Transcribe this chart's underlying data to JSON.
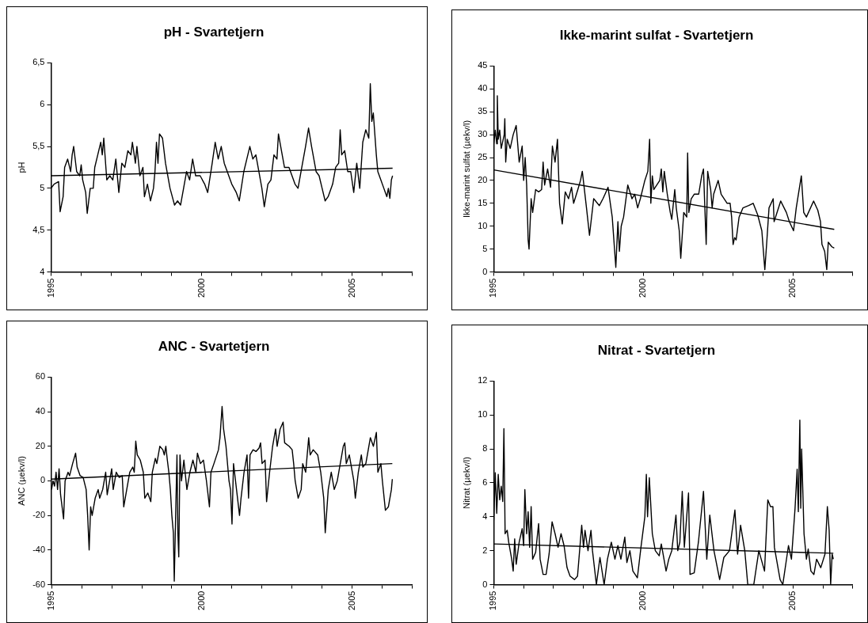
{
  "chart_data": [
    {
      "type": "line",
      "title": "pH - Svartetjern",
      "ylabel": "pH",
      "xlim": [
        1995,
        2007
      ],
      "xticks": [
        1995,
        {
          "value": 1996,
          "label": null
        },
        {
          "value": 1997,
          "label": null
        },
        {
          "value": 1998,
          "label": null
        },
        {
          "value": 1999,
          "label": null
        },
        2000,
        {
          "value": 2001,
          "label": null
        },
        {
          "value": 2002,
          "label": null
        },
        {
          "value": 2003,
          "label": null
        },
        {
          "value": 2004,
          "label": null
        },
        2005,
        {
          "value": 2006,
          "label": null
        },
        {
          "value": 2007,
          "label": null
        }
      ],
      "ylim": [
        4,
        6.5
      ],
      "yticks": [
        4,
        {
          "value": 4.5,
          "label": "4,5"
        },
        5,
        {
          "value": 5.5,
          "label": "5,5"
        },
        6,
        {
          "value": 6.5,
          "label": "6,5"
        }
      ],
      "grid": false,
      "legend": false,
      "marker": "none",
      "series": [
        {
          "color": "#000000",
          "x": [
            1995.0,
            1995.1,
            1995.25,
            1995.3,
            1995.4,
            1995.45,
            1995.55,
            1995.65,
            1995.7,
            1995.75,
            1995.85,
            1995.95,
            1996.0,
            1996.05,
            1996.15,
            1996.2,
            1996.3,
            1996.4,
            1996.45,
            1996.55,
            1996.65,
            1996.7,
            1996.75,
            1996.85,
            1996.95,
            1997.05,
            1997.15,
            1997.25,
            1997.35,
            1997.45,
            1997.55,
            1997.65,
            1997.7,
            1997.8,
            1997.85,
            1997.95,
            1998.05,
            1998.1,
            1998.2,
            1998.3,
            1998.4,
            1998.45,
            1998.5,
            1998.55,
            1998.6,
            1998.7,
            1998.8,
            1998.95,
            1999.1,
            1999.2,
            1999.3,
            1999.4,
            1999.5,
            1999.6,
            1999.7,
            1999.8,
            1999.95,
            2000.1,
            2000.2,
            2000.35,
            2000.45,
            2000.55,
            2000.65,
            2000.75,
            2000.85,
            2001.0,
            2001.15,
            2001.25,
            2001.4,
            2001.5,
            2001.6,
            2001.7,
            2001.8,
            2001.9,
            2002.0,
            2002.08,
            2002.2,
            2002.3,
            2002.4,
            2002.5,
            2002.55,
            2002.65,
            2002.75,
            2002.9,
            2003.0,
            2003.1,
            2003.2,
            2003.35,
            2003.45,
            2003.55,
            2003.65,
            2003.8,
            2003.9,
            2004.0,
            2004.1,
            2004.2,
            2004.35,
            2004.45,
            2004.55,
            2004.6,
            2004.65,
            2004.75,
            2004.85,
            2004.95,
            2005.05,
            2005.15,
            2005.25,
            2005.35,
            2005.45,
            2005.55,
            2005.6,
            2005.65,
            2005.7,
            2005.8,
            2005.85,
            2005.95,
            2006.05,
            2006.1,
            2006.15,
            2006.2,
            2006.25,
            2006.3,
            2006.34
          ],
          "values": [
            5.0,
            5.05,
            5.08,
            4.72,
            4.9,
            5.25,
            5.35,
            5.2,
            5.4,
            5.5,
            5.2,
            5.15,
            5.28,
            5.1,
            4.95,
            4.7,
            5.0,
            5.0,
            5.25,
            5.4,
            5.55,
            5.4,
            5.6,
            5.1,
            5.15,
            5.1,
            5.35,
            4.95,
            5.3,
            5.25,
            5.45,
            5.4,
            5.55,
            5.3,
            5.5,
            5.15,
            5.25,
            4.9,
            5.05,
            4.85,
            5.0,
            5.2,
            5.55,
            5.3,
            5.65,
            5.6,
            5.3,
            5.0,
            4.8,
            4.85,
            4.8,
            5.0,
            5.2,
            5.1,
            5.35,
            5.15,
            5.15,
            5.05,
            4.95,
            5.3,
            5.55,
            5.35,
            5.5,
            5.3,
            5.2,
            5.05,
            4.95,
            4.85,
            5.2,
            5.35,
            5.5,
            5.35,
            5.4,
            5.2,
            5.0,
            4.78,
            5.05,
            5.1,
            5.4,
            5.35,
            5.65,
            5.45,
            5.25,
            5.25,
            5.15,
            5.05,
            5.0,
            5.3,
            5.5,
            5.72,
            5.5,
            5.2,
            5.15,
            5.0,
            4.85,
            4.9,
            5.05,
            5.25,
            5.3,
            5.7,
            5.4,
            5.45,
            5.2,
            5.2,
            4.95,
            5.3,
            5.0,
            5.55,
            5.7,
            5.6,
            6.25,
            5.8,
            5.9,
            5.4,
            5.2,
            5.1,
            5.0,
            4.95,
            4.9,
            5.0,
            4.88,
            5.1,
            5.15
          ]
        },
        {
          "type": "line",
          "color": "#000000",
          "x": [
            1995,
            2006.34
          ],
          "values": [
            5.15,
            5.24
          ]
        }
      ]
    },
    {
      "type": "line",
      "title": "Ikke-marint sulfat - Svartetjern",
      "ylabel": "Ikke-marint sulfat (µekv/l)",
      "xlim": [
        1995,
        2007
      ],
      "xticks": [
        1995,
        {
          "value": 1996,
          "label": null
        },
        {
          "value": 1997,
          "label": null
        },
        {
          "value": 1998,
          "label": null
        },
        {
          "value": 1999,
          "label": null
        },
        2000,
        {
          "value": 2001,
          "label": null
        },
        {
          "value": 2002,
          "label": null
        },
        {
          "value": 2003,
          "label": null
        },
        {
          "value": 2004,
          "label": null
        },
        2005,
        {
          "value": 2006,
          "label": null
        },
        {
          "value": 2007,
          "label": null
        }
      ],
      "ylim": [
        0,
        45
      ],
      "yticks": [
        0,
        5,
        10,
        15,
        20,
        25,
        30,
        35,
        40,
        45
      ],
      "grid": false,
      "legend": false,
      "marker": "none",
      "series": [
        {
          "color": "#000000",
          "x": [
            1995.0,
            1995.05,
            1995.1,
            1995.12,
            1995.15,
            1995.2,
            1995.25,
            1995.35,
            1995.37,
            1995.4,
            1995.45,
            1995.55,
            1995.65,
            1995.75,
            1995.8,
            1995.85,
            1995.95,
            1996.0,
            1996.05,
            1996.1,
            1996.15,
            1996.18,
            1996.25,
            1996.3,
            1996.4,
            1996.5,
            1996.6,
            1996.65,
            1996.7,
            1996.8,
            1996.9,
            1996.96,
            1997.05,
            1997.13,
            1997.2,
            1997.29,
            1997.39,
            1997.5,
            1997.6,
            1997.67,
            1997.81,
            1997.9,
            1997.96,
            1998.1,
            1998.2,
            1998.34,
            1998.53,
            1998.65,
            1998.72,
            1998.82,
            1998.96,
            1999.08,
            1999.15,
            1999.2,
            1999.26,
            1999.34,
            1999.48,
            1999.62,
            1999.71,
            1999.81,
            1999.9,
            2000.05,
            2000.15,
            2000.21,
            2000.25,
            2000.3,
            2000.35,
            2000.45,
            2000.55,
            2000.6,
            2000.65,
            2000.7,
            2000.8,
            2000.9,
            2000.95,
            2001.05,
            2001.1,
            2001.2,
            2001.25,
            2001.35,
            2001.45,
            2001.48,
            2001.52,
            2001.6,
            2001.7,
            2001.85,
            2001.95,
            2002.01,
            2002.05,
            2002.1,
            2002.15,
            2002.25,
            2002.3,
            2002.35,
            2002.45,
            2002.5,
            2002.6,
            2002.7,
            2002.8,
            2002.9,
            2002.95,
            2003.0,
            2003.05,
            2003.1,
            2003.2,
            2003.33,
            2003.52,
            2003.67,
            2003.82,
            2003.96,
            2004.06,
            2004.13,
            2004.2,
            2004.34,
            2004.37,
            2004.59,
            2004.78,
            2004.88,
            2005.02,
            2005.11,
            2005.28,
            2005.36,
            2005.45,
            2005.69,
            2005.83,
            2005.92,
            2005.97,
            2006.06,
            2006.13,
            2006.18,
            2006.3,
            2006.38
          ],
          "values": [
            28,
            31,
            28,
            38.5,
            29,
            31,
            27,
            30,
            33.5,
            24,
            29,
            27,
            30,
            32,
            28,
            24,
            27.5,
            20,
            25,
            19,
            7,
            5,
            16,
            13,
            18,
            17.5,
            18,
            24,
            19,
            22.5,
            18.5,
            27.5,
            24,
            29,
            15,
            10.5,
            17.5,
            16,
            18.5,
            15,
            18,
            20,
            22,
            14,
            8,
            16,
            14.5,
            16,
            17,
            18.5,
            12,
            1,
            11,
            4.5,
            10,
            12,
            19,
            16,
            17,
            14,
            16,
            20,
            22,
            29,
            15,
            21,
            18,
            19,
            20,
            22.5,
            17.5,
            22,
            17,
            13,
            11.5,
            18,
            14,
            9,
            3,
            13,
            12,
            26,
            13,
            16,
            17,
            17,
            21,
            22.5,
            15,
            6,
            22,
            18,
            14,
            17,
            19,
            20,
            17,
            16,
            15,
            15,
            12,
            6,
            7.5,
            7,
            12,
            14,
            14.5,
            15,
            12.5,
            9,
            0.5,
            7,
            14,
            16,
            11,
            15.5,
            13,
            11,
            9,
            14,
            21,
            13,
            12,
            15.5,
            13.5,
            11,
            6,
            4.5,
            0.5,
            6.5,
            5.5,
            5.2
          ]
        },
        {
          "type": "line",
          "color": "#000000",
          "x": [
            1995,
            2006.38
          ],
          "values": [
            22.3,
            9.3
          ]
        }
      ]
    },
    {
      "type": "line",
      "title": "ANC - Svartetjern",
      "ylabel": "ANC (µekv/l)",
      "xlim": [
        1995,
        2007
      ],
      "xticks": [
        1995,
        {
          "value": 1996,
          "label": null
        },
        {
          "value": 1997,
          "label": null
        },
        {
          "value": 1998,
          "label": null
        },
        {
          "value": 1999,
          "label": null
        },
        2000,
        {
          "value": 2001,
          "label": null
        },
        {
          "value": 2002,
          "label": null
        },
        {
          "value": 2003,
          "label": null
        },
        {
          "value": 2004,
          "label": null
        },
        2005,
        {
          "value": 2006,
          "label": null
        },
        {
          "value": 2007,
          "label": null
        }
      ],
      "ylim": [
        -60,
        60
      ],
      "yticks": [
        -60,
        -40,
        -20,
        0,
        20,
        40,
        60
      ],
      "grid": false,
      "legend": false,
      "marker": "none",
      "series": [
        {
          "color": "#000000",
          "x": [
            1995.0,
            1995.05,
            1995.1,
            1995.15,
            1995.2,
            1995.25,
            1995.3,
            1995.4,
            1995.45,
            1995.55,
            1995.6,
            1995.7,
            1995.8,
            1995.85,
            1995.95,
            1996.05,
            1996.15,
            1996.2,
            1996.25,
            1996.3,
            1996.35,
            1996.45,
            1996.55,
            1996.6,
            1996.7,
            1996.8,
            1996.85,
            1996.95,
            1997.0,
            1997.05,
            1997.15,
            1997.25,
            1997.35,
            1997.4,
            1997.5,
            1997.6,
            1997.7,
            1997.75,
            1997.8,
            1997.85,
            1997.95,
            1998.05,
            1998.1,
            1998.2,
            1998.3,
            1998.35,
            1998.45,
            1998.5,
            1998.6,
            1998.7,
            1998.75,
            1998.8,
            1998.85,
            1998.9,
            1998.95,
            1999.0,
            1999.05,
            1999.08,
            1999.12,
            1999.17,
            1999.2,
            1999.23,
            1999.27,
            1999.32,
            1999.4,
            1999.5,
            1999.6,
            1999.7,
            1999.8,
            1999.85,
            1999.95,
            2000.05,
            2000.15,
            2000.25,
            2000.3,
            2000.4,
            2000.55,
            2000.6,
            2000.67,
            2000.72,
            2000.8,
            2000.9,
            2000.95,
            2001.0,
            2001.05,
            2001.15,
            2001.25,
            2001.3,
            2001.4,
            2001.5,
            2001.55,
            2001.6,
            2001.7,
            2001.8,
            2001.9,
            2001.95,
            2002.0,
            2002.1,
            2002.15,
            2002.25,
            2002.35,
            2002.45,
            2002.5,
            2002.6,
            2002.7,
            2002.75,
            2002.9,
            2003.0,
            2003.05,
            2003.1,
            2003.2,
            2003.3,
            2003.35,
            2003.45,
            2003.55,
            2003.6,
            2003.7,
            2003.85,
            2003.95,
            2004.05,
            2004.1,
            2004.2,
            2004.3,
            2004.4,
            2004.5,
            2004.6,
            2004.7,
            2004.75,
            2004.8,
            2004.9,
            2004.95,
            2005.05,
            2005.1,
            2005.2,
            2005.3,
            2005.35,
            2005.45,
            2005.55,
            2005.6,
            2005.7,
            2005.8,
            2005.85,
            2005.95,
            2006.0,
            2006.1,
            2006.2,
            2006.3,
            2006.33
          ],
          "values": [
            -5,
            0,
            -3,
            5,
            -5,
            7,
            -8,
            -22,
            0,
            5,
            3,
            10,
            16,
            8,
            3,
            2,
            -5,
            -20,
            -40,
            -15,
            -20,
            -10,
            -5,
            -10,
            -5,
            5,
            -8,
            2,
            7,
            -5,
            5,
            2,
            3,
            -15,
            -5,
            5,
            8,
            5,
            23,
            15,
            12,
            5,
            -10,
            -7,
            -12,
            5,
            13,
            10,
            20,
            18,
            15,
            20,
            12,
            5,
            -5,
            -20,
            -30,
            -58,
            -25,
            15,
            -30,
            -44,
            15,
            0,
            12,
            -5,
            5,
            12,
            5,
            16,
            10,
            12,
            0,
            -15,
            5,
            10,
            18,
            25,
            43,
            30,
            20,
            0,
            -5,
            -25,
            10,
            -5,
            -20,
            -10,
            5,
            15,
            -10,
            15,
            18,
            17,
            19,
            22,
            10,
            12,
            -12,
            5,
            20,
            30,
            20,
            30,
            34,
            22,
            20,
            18,
            10,
            0,
            -10,
            -5,
            10,
            5,
            25,
            15,
            18,
            15,
            5,
            -10,
            -30,
            -5,
            5,
            -5,
            0,
            10,
            20,
            22,
            10,
            15,
            10,
            0,
            -10,
            5,
            15,
            8,
            10,
            20,
            25,
            20,
            28,
            5,
            10,
            0,
            -17,
            -15,
            -5,
            1
          ]
        },
        {
          "type": "line",
          "color": "#000000",
          "x": [
            1995,
            2006.33
          ],
          "values": [
            1,
            10
          ]
        }
      ]
    },
    {
      "type": "line",
      "title": "Nitrat - Svartetjern",
      "ylabel": "Nitrat (µekv/l)",
      "xlim": [
        1995,
        2007
      ],
      "xticks": [
        1995,
        {
          "value": 1996,
          "label": null
        },
        {
          "value": 1997,
          "label": null
        },
        {
          "value": 1998,
          "label": null
        },
        {
          "value": 1999,
          "label": null
        },
        2000,
        {
          "value": 2001,
          "label": null
        },
        {
          "value": 2002,
          "label": null
        },
        {
          "value": 2003,
          "label": null
        },
        {
          "value": 2004,
          "label": null
        },
        2005,
        {
          "value": 2006,
          "label": null
        },
        {
          "value": 2007,
          "label": null
        }
      ],
      "ylim": [
        0,
        12
      ],
      "yticks": [
        0,
        2,
        4,
        6,
        8,
        10,
        12
      ],
      "grid": false,
      "legend": false,
      "marker": "none",
      "series": [
        {
          "color": "#000000",
          "x": [
            1995.0,
            1995.05,
            1995.1,
            1995.15,
            1995.2,
            1995.25,
            1995.3,
            1995.34,
            1995.38,
            1995.45,
            1995.5,
            1995.6,
            1995.65,
            1995.7,
            1995.75,
            1995.85,
            1995.95,
            1996.0,
            1996.04,
            1996.1,
            1996.15,
            1996.2,
            1996.25,
            1996.3,
            1996.4,
            1996.5,
            1996.55,
            1996.65,
            1996.75,
            1996.85,
            1996.95,
            1997.05,
            1997.15,
            1997.25,
            1997.35,
            1997.45,
            1997.55,
            1997.7,
            1997.8,
            1997.94,
            1998.0,
            1998.05,
            1998.15,
            1998.25,
            1998.3,
            1998.43,
            1998.55,
            1998.69,
            1998.8,
            1998.93,
            1999.05,
            1999.15,
            1999.25,
            1999.38,
            1999.45,
            1999.55,
            1999.65,
            1999.8,
            1999.92,
            2000.05,
            2000.1,
            2000.14,
            2000.2,
            2000.3,
            2000.4,
            2000.53,
            2000.6,
            2000.76,
            2000.85,
            2000.95,
            2001.09,
            2001.15,
            2001.22,
            2001.3,
            2001.37,
            2001.51,
            2001.56,
            2001.7,
            2001.84,
            2002.01,
            2002.12,
            2002.22,
            2002.36,
            2002.55,
            2002.69,
            2002.88,
            2003.06,
            2003.15,
            2003.25,
            2003.39,
            2003.49,
            2003.69,
            2003.86,
            2004.05,
            2004.16,
            2004.25,
            2004.33,
            2004.38,
            2004.57,
            2004.66,
            2004.85,
            2004.95,
            2005.07,
            2005.14,
            2005.18,
            2005.23,
            2005.26,
            2005.29,
            2005.37,
            2005.45,
            2005.51,
            2005.6,
            2005.7,
            2005.79,
            2005.93,
            2006.07,
            2006.15,
            2006.21,
            2006.26,
            2006.31,
            2006.35
          ],
          "values": [
            3.8,
            6.6,
            4.2,
            6.5,
            5,
            5.8,
            4.9,
            9.2,
            3,
            3.2,
            2.5,
            1.5,
            0.8,
            2.7,
            1.2,
            2.5,
            3.3,
            2.3,
            5.6,
            3,
            4.3,
            2.2,
            4.6,
            1.5,
            1.9,
            3.6,
            1.5,
            0.6,
            0.6,
            1.8,
            3.7,
            3,
            2.2,
            3,
            2.3,
            1,
            0.5,
            0.3,
            0.5,
            3.5,
            2.2,
            3.2,
            2,
            3.2,
            2,
            0,
            1.6,
            0,
            1.5,
            2.5,
            1.5,
            2.3,
            1.5,
            2.8,
            1.3,
            2,
            0.8,
            0.4,
            2.2,
            4,
            6.5,
            4,
            6.3,
            3,
            2,
            1.7,
            2.4,
            0.8,
            1.5,
            2,
            4.1,
            2,
            2.5,
            5.5,
            2.2,
            5.4,
            0.6,
            0.7,
            2.5,
            5.5,
            1.5,
            4.1,
            2,
            0.3,
            1.6,
            2,
            4.4,
            1.8,
            3.5,
            2,
            0,
            0,
            2,
            0.8,
            5,
            4.6,
            4.6,
            2.2,
            0.3,
            0,
            2.3,
            1.5,
            4.5,
            6.8,
            4.3,
            9.7,
            4.5,
            8,
            3,
            1.5,
            2.1,
            0.8,
            0.6,
            1.5,
            1,
            1.8,
            4.6,
            3.2,
            0,
            1.8,
            1.5
          ]
        },
        {
          "type": "line",
          "color": "#000000",
          "x": [
            1995,
            2006.35
          ],
          "values": [
            2.4,
            1.85
          ]
        }
      ]
    }
  ]
}
